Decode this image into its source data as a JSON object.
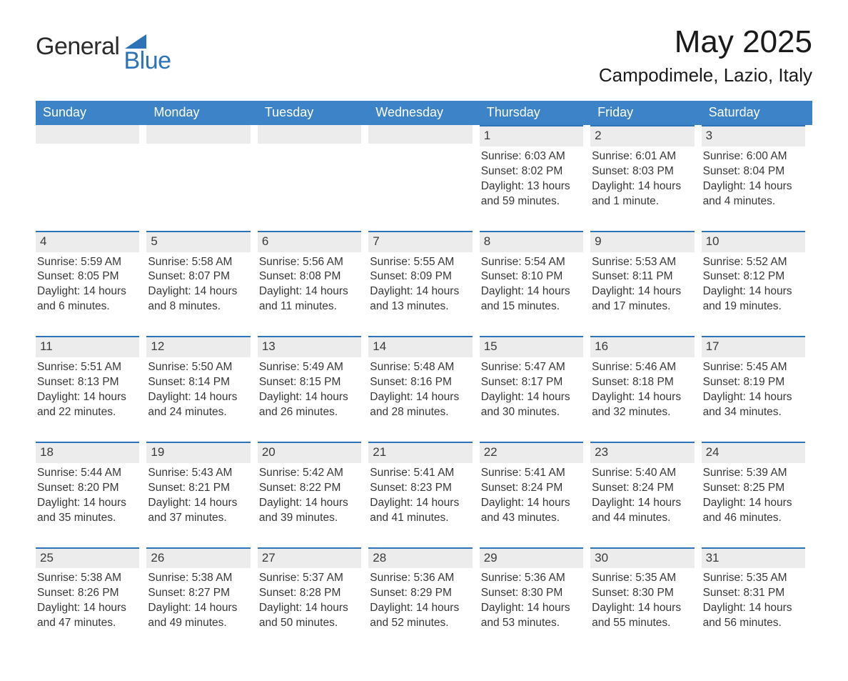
{
  "brand": {
    "word1": "General",
    "word2": "Blue",
    "triangle_color": "#2c73b8"
  },
  "title": {
    "month": "May 2025",
    "location": "Campodimele, Lazio, Italy"
  },
  "style": {
    "header_bg": "#3c83c8",
    "row_stripe": "#ececec",
    "row_border_top": "#2c73b8",
    "page_bg": "#ffffff",
    "text_color": "#373737",
    "dayhead_font_size_pt": 13,
    "cell_font_size_pt": 11.5,
    "columns": 7
  },
  "day_names": [
    "Sunday",
    "Monday",
    "Tuesday",
    "Wednesday",
    "Thursday",
    "Friday",
    "Saturday"
  ],
  "weeks": [
    [
      null,
      null,
      null,
      null,
      {
        "date": "1",
        "sunrise": "6:03 AM",
        "sunset": "8:02 PM",
        "daylight": "13 hours and 59 minutes."
      },
      {
        "date": "2",
        "sunrise": "6:01 AM",
        "sunset": "8:03 PM",
        "daylight": "14 hours and 1 minute."
      },
      {
        "date": "3",
        "sunrise": "6:00 AM",
        "sunset": "8:04 PM",
        "daylight": "14 hours and 4 minutes."
      }
    ],
    [
      {
        "date": "4",
        "sunrise": "5:59 AM",
        "sunset": "8:05 PM",
        "daylight": "14 hours and 6 minutes."
      },
      {
        "date": "5",
        "sunrise": "5:58 AM",
        "sunset": "8:07 PM",
        "daylight": "14 hours and 8 minutes."
      },
      {
        "date": "6",
        "sunrise": "5:56 AM",
        "sunset": "8:08 PM",
        "daylight": "14 hours and 11 minutes."
      },
      {
        "date": "7",
        "sunrise": "5:55 AM",
        "sunset": "8:09 PM",
        "daylight": "14 hours and 13 minutes."
      },
      {
        "date": "8",
        "sunrise": "5:54 AM",
        "sunset": "8:10 PM",
        "daylight": "14 hours and 15 minutes."
      },
      {
        "date": "9",
        "sunrise": "5:53 AM",
        "sunset": "8:11 PM",
        "daylight": "14 hours and 17 minutes."
      },
      {
        "date": "10",
        "sunrise": "5:52 AM",
        "sunset": "8:12 PM",
        "daylight": "14 hours and 19 minutes."
      }
    ],
    [
      {
        "date": "11",
        "sunrise": "5:51 AM",
        "sunset": "8:13 PM",
        "daylight": "14 hours and 22 minutes."
      },
      {
        "date": "12",
        "sunrise": "5:50 AM",
        "sunset": "8:14 PM",
        "daylight": "14 hours and 24 minutes."
      },
      {
        "date": "13",
        "sunrise": "5:49 AM",
        "sunset": "8:15 PM",
        "daylight": "14 hours and 26 minutes."
      },
      {
        "date": "14",
        "sunrise": "5:48 AM",
        "sunset": "8:16 PM",
        "daylight": "14 hours and 28 minutes."
      },
      {
        "date": "15",
        "sunrise": "5:47 AM",
        "sunset": "8:17 PM",
        "daylight": "14 hours and 30 minutes."
      },
      {
        "date": "16",
        "sunrise": "5:46 AM",
        "sunset": "8:18 PM",
        "daylight": "14 hours and 32 minutes."
      },
      {
        "date": "17",
        "sunrise": "5:45 AM",
        "sunset": "8:19 PM",
        "daylight": "14 hours and 34 minutes."
      }
    ],
    [
      {
        "date": "18",
        "sunrise": "5:44 AM",
        "sunset": "8:20 PM",
        "daylight": "14 hours and 35 minutes."
      },
      {
        "date": "19",
        "sunrise": "5:43 AM",
        "sunset": "8:21 PM",
        "daylight": "14 hours and 37 minutes."
      },
      {
        "date": "20",
        "sunrise": "5:42 AM",
        "sunset": "8:22 PM",
        "daylight": "14 hours and 39 minutes."
      },
      {
        "date": "21",
        "sunrise": "5:41 AM",
        "sunset": "8:23 PM",
        "daylight": "14 hours and 41 minutes."
      },
      {
        "date": "22",
        "sunrise": "5:41 AM",
        "sunset": "8:24 PM",
        "daylight": "14 hours and 43 minutes."
      },
      {
        "date": "23",
        "sunrise": "5:40 AM",
        "sunset": "8:24 PM",
        "daylight": "14 hours and 44 minutes."
      },
      {
        "date": "24",
        "sunrise": "5:39 AM",
        "sunset": "8:25 PM",
        "daylight": "14 hours and 46 minutes."
      }
    ],
    [
      {
        "date": "25",
        "sunrise": "5:38 AM",
        "sunset": "8:26 PM",
        "daylight": "14 hours and 47 minutes."
      },
      {
        "date": "26",
        "sunrise": "5:38 AM",
        "sunset": "8:27 PM",
        "daylight": "14 hours and 49 minutes."
      },
      {
        "date": "27",
        "sunrise": "5:37 AM",
        "sunset": "8:28 PM",
        "daylight": "14 hours and 50 minutes."
      },
      {
        "date": "28",
        "sunrise": "5:36 AM",
        "sunset": "8:29 PM",
        "daylight": "14 hours and 52 minutes."
      },
      {
        "date": "29",
        "sunrise": "5:36 AM",
        "sunset": "8:30 PM",
        "daylight": "14 hours and 53 minutes."
      },
      {
        "date": "30",
        "sunrise": "5:35 AM",
        "sunset": "8:30 PM",
        "daylight": "14 hours and 55 minutes."
      },
      {
        "date": "31",
        "sunrise": "5:35 AM",
        "sunset": "8:31 PM",
        "daylight": "14 hours and 56 minutes."
      }
    ]
  ],
  "labels": {
    "sunrise": "Sunrise: ",
    "sunset": "Sunset: ",
    "daylight": "Daylight: "
  }
}
